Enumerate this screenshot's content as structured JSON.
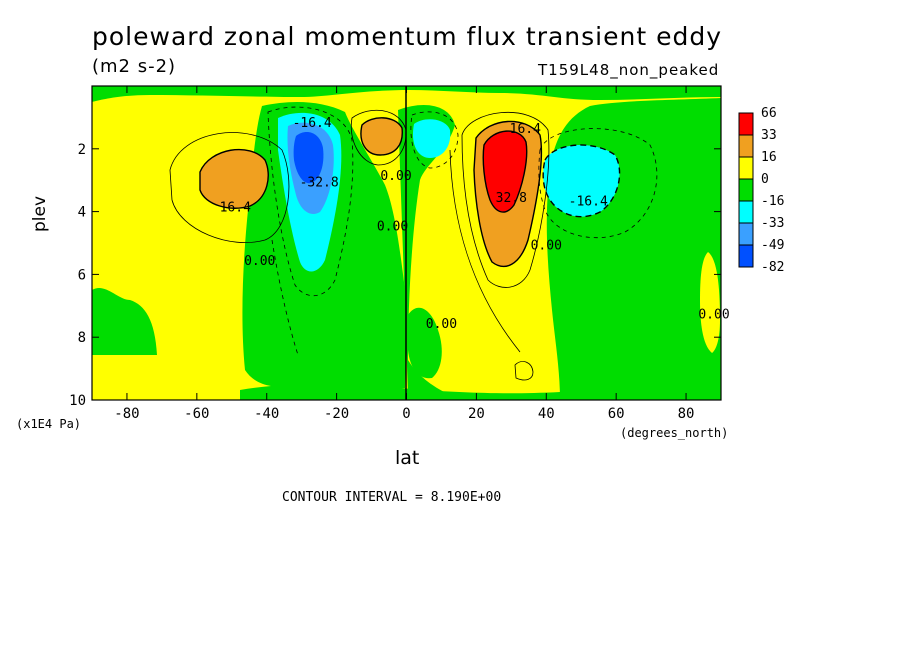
{
  "chart_data": {
    "type": "heatmap",
    "title": "poleward zonal momentum flux transient eddy",
    "units": "(m2 s-2)",
    "run_id": "T159L48_non_peaked",
    "xlabel": "lat",
    "x_unit": "(degrees_north)",
    "ylabel": "plev",
    "y_unit": "(x1E4 Pa)",
    "xlim": [
      -90,
      90
    ],
    "ylim": [
      0,
      10
    ],
    "y_inverted": true,
    "x_ticks": [
      -80,
      -60,
      -40,
      -20,
      0,
      20,
      40,
      60,
      80
    ],
    "y_ticks": [
      2,
      4,
      6,
      8,
      10
    ],
    "contour_interval_text": "CONTOUR INTERVAL = 8.190E+00",
    "colorbar": {
      "labels": [
        "66",
        "33",
        "16",
        "0",
        "-16",
        "-33",
        "-49",
        "-82"
      ],
      "colors": [
        "#ff0000",
        "#f0a020",
        "#ffff00",
        "#00dd00",
        "#00ffff",
        "#3aa0ff",
        "#0050ff"
      ]
    },
    "contour_labels": [
      {
        "text": "16.4",
        "lat": -49,
        "plev": 4.0
      },
      {
        "text": "-16.4",
        "lat": -27,
        "plev": 1.3
      },
      {
        "text": "-32.8",
        "lat": -25,
        "plev": 3.2
      },
      {
        "text": "0.00",
        "lat": -42,
        "plev": 5.7
      },
      {
        "text": "0.00",
        "lat": -3,
        "plev": 3.0
      },
      {
        "text": "0.00",
        "lat": -4,
        "plev": 4.6
      },
      {
        "text": "16.4",
        "lat": 34,
        "plev": 1.5
      },
      {
        "text": "32.8",
        "lat": 30,
        "plev": 3.7
      },
      {
        "text": "0.00",
        "lat": 40,
        "plev": 5.2
      },
      {
        "text": "-16.4",
        "lat": 52,
        "plev": 3.8
      },
      {
        "text": "0.00",
        "lat": 10,
        "plev": 7.7
      },
      {
        "text": "0.00",
        "lat": 88,
        "plev": 7.4
      }
    ],
    "features": [
      {
        "sign": "positive",
        "lat": -47,
        "plev": 3.0,
        "peak": 24
      },
      {
        "sign": "negative",
        "lat": -28,
        "plev": 2.5,
        "peak": -55
      },
      {
        "sign": "positive",
        "lat": -7,
        "plev": 1.8,
        "peak": 20
      },
      {
        "sign": "negative",
        "lat": 8,
        "plev": 1.8,
        "peak": -20
      },
      {
        "sign": "positive",
        "lat": 27,
        "plev": 2.7,
        "peak": 70
      },
      {
        "sign": "negative",
        "lat": 47,
        "plev": 3.0,
        "peak": -28
      }
    ]
  }
}
